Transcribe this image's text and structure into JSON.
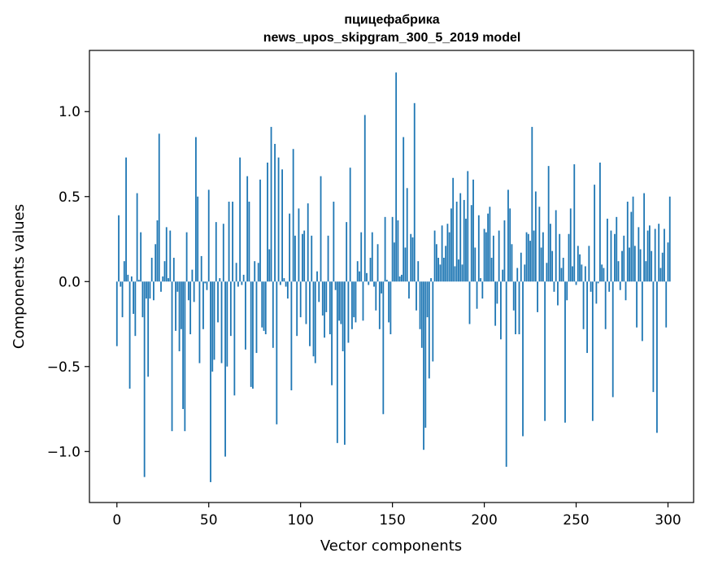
{
  "chart_data": {
    "type": "bar",
    "title": "пцицефабрика\nnews_upos_skipgram_300_5_2019 model",
    "title_lines": [
      "пцицефабрика",
      "news_upos_skipgram_300_5_2019 model"
    ],
    "xlabel": "Vector components",
    "ylabel": "Components values",
    "xlim": [
      -14.95,
      313.95
    ],
    "ylim": [
      -1.3,
      1.36
    ],
    "x_ticks": [
      {
        "value": 0,
        "label": "0"
      },
      {
        "value": 50,
        "label": "50"
      },
      {
        "value": 100,
        "label": "100"
      },
      {
        "value": 150,
        "label": "150"
      },
      {
        "value": 200,
        "label": "200"
      },
      {
        "value": 250,
        "label": "250"
      },
      {
        "value": 300,
        "label": "300"
      }
    ],
    "y_ticks": [
      {
        "value": -1.0,
        "label": "−1.0"
      },
      {
        "value": -0.5,
        "label": "−0.5"
      },
      {
        "value": 0.0,
        "label": "0.0"
      },
      {
        "value": 0.5,
        "label": "0.5"
      },
      {
        "value": 1.0,
        "label": "1.0"
      }
    ],
    "grid": false,
    "bar_color": "#1f77b4",
    "values": [
      -0.38,
      0.39,
      -0.03,
      -0.21,
      0.12,
      0.73,
      0.04,
      -0.63,
      0.03,
      -0.19,
      -0.32,
      0.52,
      0.01,
      0.29,
      -0.21,
      -1.15,
      -0.1,
      -0.56,
      -0.1,
      0.14,
      -0.11,
      0.22,
      0.36,
      0.87,
      -0.06,
      0.03,
      0.12,
      0.32,
      0.02,
      0.3,
      -0.88,
      0.14,
      -0.29,
      -0.06,
      -0.41,
      -0.28,
      -0.75,
      -0.88,
      0.29,
      -0.11,
      -0.31,
      0.07,
      -0.12,
      0.85,
      0.5,
      -0.48,
      0.15,
      -0.28,
      -0.01,
      -0.05,
      0.54,
      -1.18,
      -0.53,
      -0.46,
      0.35,
      -0.24,
      0.02,
      -0.48,
      0.34,
      -1.03,
      -0.5,
      0.47,
      -0.32,
      0.47,
      -0.67,
      0.11,
      -0.03,
      0.73,
      -0.02,
      0.04,
      -0.4,
      0.62,
      0.47,
      -0.62,
      -0.63,
      0.12,
      -0.42,
      0.11,
      0.6,
      -0.27,
      -0.29,
      -0.31,
      0.7,
      0.19,
      0.91,
      -0.39,
      0.81,
      -0.84,
      0.73,
      -0.02,
      0.66,
      0.02,
      -0.03,
      -0.1,
      0.4,
      -0.64,
      0.78,
      0.27,
      -0.32,
      0.43,
      -0.21,
      0.28,
      0.3,
      -0.25,
      0.46,
      -0.38,
      0.27,
      -0.44,
      -0.48,
      0.06,
      -0.12,
      0.62,
      -0.2,
      -0.33,
      -0.18,
      0.27,
      -0.31,
      -0.61,
      0.47,
      -0.05,
      -0.95,
      -0.23,
      -0.25,
      -0.41,
      -0.96,
      0.35,
      -0.36,
      0.67,
      -0.28,
      -0.21,
      -0.24,
      0.12,
      0.06,
      0.29,
      -0.23,
      0.98,
      0.05,
      -0.02,
      0.14,
      0.29,
      -0.03,
      -0.17,
      0.22,
      -0.28,
      -0.07,
      -0.78,
      0.38,
      0.01,
      -0.24,
      -0.31,
      0.38,
      0.23,
      1.23,
      0.36,
      0.03,
      0.04,
      0.85,
      0.2,
      0.55,
      -0.1,
      0.28,
      0.26,
      1.05,
      -0.17,
      0.12,
      -0.28,
      -0.39,
      -0.99,
      -0.86,
      -0.21,
      -0.57,
      0.02,
      -0.47,
      0.3,
      0.22,
      0.14,
      0.1,
      0.33,
      0.14,
      0.21,
      0.34,
      0.29,
      0.43,
      0.61,
      0.09,
      0.47,
      0.13,
      0.52,
      0.1,
      0.48,
      0.37,
      0.65,
      -0.25,
      0.45,
      0.6,
      0.2,
      -0.16,
      0.39,
      0.02,
      -0.1,
      0.31,
      0.29,
      0.4,
      0.44,
      0.14,
      0.27,
      -0.26,
      -0.13,
      0.3,
      -0.34,
      0.07,
      0.36,
      -1.09,
      0.54,
      0.43,
      0.22,
      -0.17,
      -0.31,
      0.08,
      -0.31,
      0.17,
      -0.91,
      0.1,
      0.29,
      0.28,
      0.24,
      0.91,
      0.3,
      0.53,
      -0.18,
      0.44,
      0.2,
      0.29,
      -0.82,
      0.11,
      0.68,
      0.34,
      0.18,
      -0.06,
      0.42,
      -0.14,
      0.28,
      0.08,
      0.14,
      -0.83,
      -0.11,
      0.28,
      0.43,
      0.09,
      0.69,
      -0.02,
      0.21,
      0.16,
      0.1,
      -0.28,
      0.09,
      -0.42,
      0.21,
      -0.06,
      -0.82,
      0.57,
      -0.13,
      -0.01,
      0.7,
      0.1,
      0.08,
      -0.28,
      0.37,
      -0.06,
      0.3,
      -0.68,
      0.28,
      0.38,
      0.12,
      -0.05,
      0.18,
      0.27,
      -0.11,
      0.47,
      0.2,
      0.41,
      0.5,
      0.21,
      -0.27,
      0.32,
      0.19,
      -0.35,
      0.52,
      0.12,
      0.3,
      0.33,
      0.18,
      -0.65,
      0.31,
      -0.89,
      0.34,
      0.08,
      0.17,
      0.31,
      -0.27,
      0.23,
      0.5
    ]
  }
}
